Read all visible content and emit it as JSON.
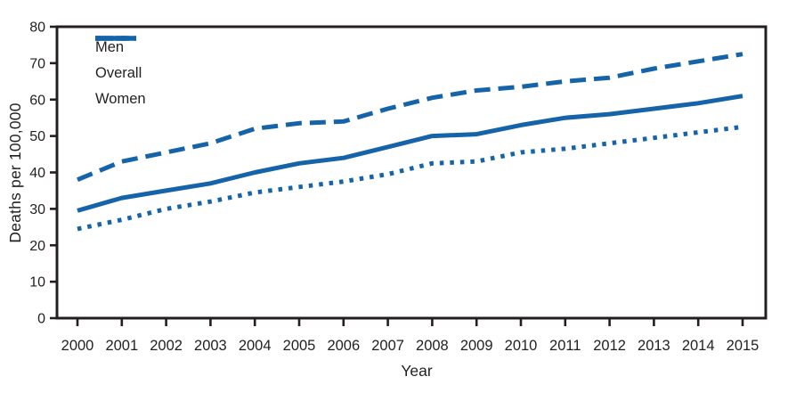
{
  "figure": {
    "background_color": "#ffffff"
  },
  "colors": {
    "line_blue": "#1563a9",
    "axis_black": "#231f20",
    "text": "#231f20"
  },
  "chart_data": {
    "type": "line",
    "title": "",
    "xlabel": "Year",
    "ylabel": "Deaths per 100,000",
    "x": [
      2000,
      2001,
      2002,
      2003,
      2004,
      2005,
      2006,
      2007,
      2008,
      2009,
      2010,
      2011,
      2012,
      2013,
      2014,
      2015
    ],
    "series": [
      {
        "name": "Men",
        "line_style": "dashed",
        "values": [
          38,
          43,
          45.5,
          48,
          52,
          53.5,
          54,
          57.5,
          60.5,
          62.5,
          63.5,
          65,
          66,
          68.5,
          70.5,
          72.5
        ]
      },
      {
        "name": "Overall",
        "line_style": "solid",
        "values": [
          29.5,
          33,
          35,
          37,
          40,
          42.5,
          44,
          47,
          50,
          50.5,
          53,
          55,
          56,
          57.5,
          59,
          61
        ]
      },
      {
        "name": "Women",
        "line_style": "dotted",
        "values": [
          24.5,
          27,
          30,
          32,
          34.5,
          36,
          37.5,
          39.5,
          42.5,
          43,
          45.5,
          46.5,
          48,
          49.5,
          51,
          52.5
        ]
      }
    ],
    "ylim": [
      0,
      80
    ],
    "y_ticks": [
      0,
      10,
      20,
      30,
      40,
      50,
      60,
      70,
      80
    ],
    "grid": false,
    "frame": "full-box",
    "legend_position": "top-left"
  }
}
